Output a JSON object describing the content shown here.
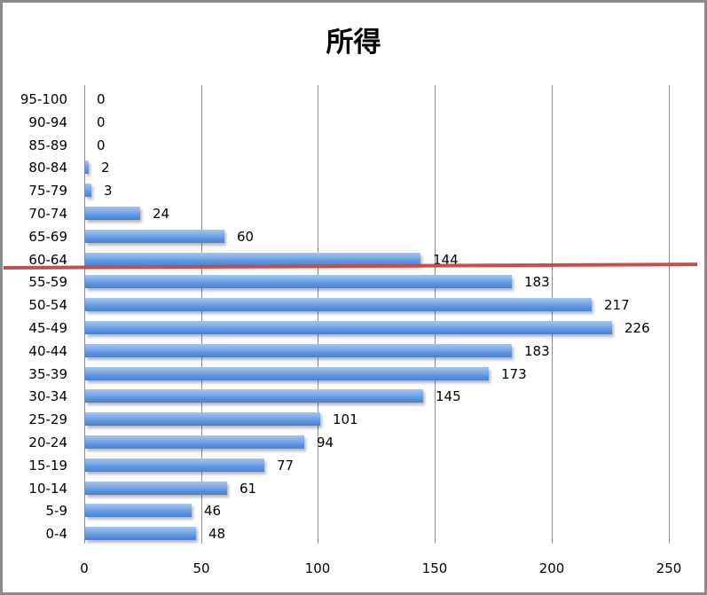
{
  "chart_data": {
    "type": "bar",
    "orientation": "horizontal",
    "title": "所得",
    "xlabel": "",
    "ylabel": "",
    "xlim": [
      0,
      250
    ],
    "xticks": [
      0,
      50,
      100,
      150,
      200,
      250
    ],
    "xtick_labels": [
      "0",
      "50",
      "100",
      "150",
      "200",
      "250"
    ],
    "grid": "vertical",
    "legend": "none",
    "categories": [
      "95-100",
      "90-94",
      "85-89",
      "80-84",
      "75-79",
      "70-74",
      "65-69",
      "60-64",
      "55-59",
      "50-54",
      "45-49",
      "40-44",
      "35-39",
      "30-34",
      "25-29",
      "20-24",
      "15-19",
      "10-14",
      "5-9",
      "0-4"
    ],
    "values": [
      0,
      0,
      0,
      2,
      3,
      24,
      60,
      144,
      183,
      217,
      226,
      183,
      173,
      145,
      101,
      94,
      77,
      61,
      46,
      48
    ],
    "data_labels": [
      "0",
      "0",
      "0",
      "2",
      "3",
      "24",
      "60",
      "144",
      "183",
      "217",
      "226",
      "183",
      "173",
      "145",
      "101",
      "94",
      "77",
      "61",
      "46",
      "48"
    ],
    "annotations": [
      {
        "type": "line",
        "color": "#c0504d",
        "position": "between 60-64 and 55-59",
        "orientation": "horizontal"
      }
    ],
    "colors": {
      "bar": "#5b93de",
      "annotation_line": "#c0504d",
      "grid": "#8c8c8c",
      "border": "#8a8a8a"
    }
  }
}
